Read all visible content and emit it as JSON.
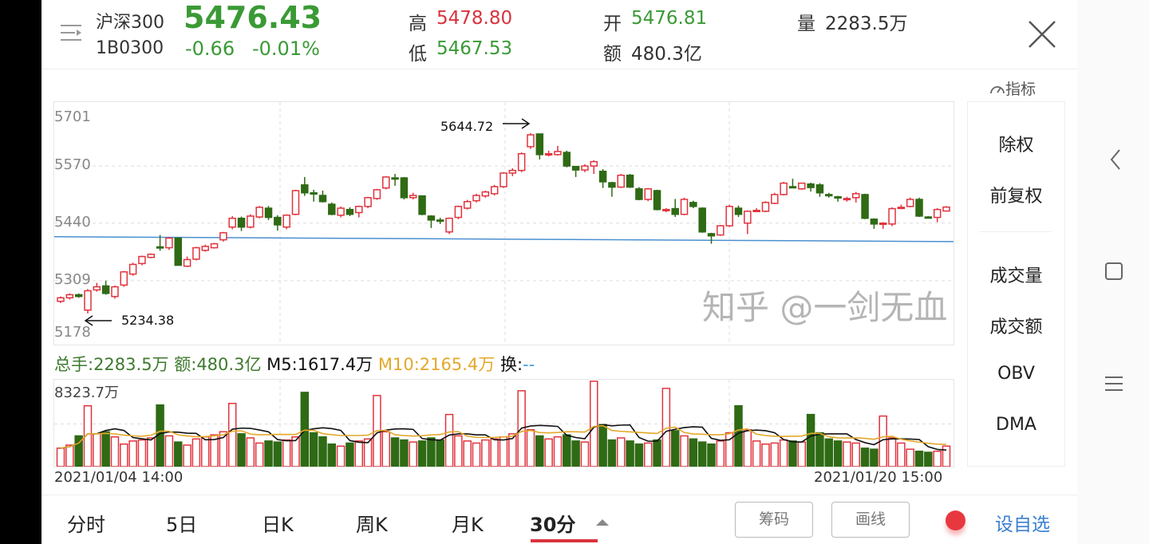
{
  "header": {
    "name": "沪深300",
    "code": "1B0300",
    "price": "5476.43",
    "change": "-0.66",
    "change_pct": "-0.01%",
    "high_label": "高",
    "high": "5478.80",
    "low_label": "低",
    "low": "5467.53",
    "open_label": "开",
    "open": "5476.81",
    "amount_label": "额",
    "amount": "480.3亿",
    "volume_label": "量",
    "volume": "2283.5万"
  },
  "indicator_label": "指标",
  "side_menu": [
    {
      "label": "除权",
      "active": false
    },
    {
      "label": "前复权",
      "active": true
    },
    {
      "label": "成交量",
      "active": true
    },
    {
      "label": "成交额",
      "active": false
    },
    {
      "label": "OBV",
      "active": false
    },
    {
      "label": "DMA",
      "active": false
    }
  ],
  "volume_legend": {
    "total": "总手:2283.5万",
    "amount": "额:480.3亿",
    "m5": "M5:1617.4万",
    "m10": "M10:2165.4万",
    "turnover_label": "换:",
    "turnover": "--"
  },
  "dates": {
    "start": "2021/01/04 14:00",
    "end": "2021/01/20 15:00"
  },
  "tabs": [
    {
      "label": "分时"
    },
    {
      "label": "5日"
    },
    {
      "label": "日K"
    },
    {
      "label": "周K"
    },
    {
      "label": "月K"
    },
    {
      "label": "30分",
      "active": true
    }
  ],
  "buttons": {
    "chips": "筹码",
    "draw": "画线",
    "add_watch": "设自选"
  },
  "watermark": "知乎 @一剑无血",
  "colors": {
    "up": "#e0343e",
    "down": "#2f6a15",
    "price_green": "#3a9a35",
    "accent_red": "#d9333d",
    "link_blue": "#3a7fd0",
    "ma5": "#111111",
    "ma10": "#e3a82a",
    "trendline": "#4a90d0"
  },
  "chart_data": {
    "type": "candlestick",
    "interval": "30分",
    "ylim": [
      5178,
      5701
    ],
    "yticks": [
      "5701",
      "5570",
      "5440",
      "5309",
      "5178"
    ],
    "annotations": {
      "max": "5644.72",
      "min": "5234.38"
    },
    "trendline": [
      5409,
      5398
    ],
    "ohlc": [
      [
        5262,
        5270,
        5273,
        5258
      ],
      [
        5270,
        5277,
        5280,
        5266
      ],
      [
        5277,
        5273,
        5280,
        5270
      ],
      [
        5242,
        5286,
        5290,
        5234.38
      ],
      [
        5288,
        5295,
        5304,
        5284
      ],
      [
        5297,
        5280,
        5309,
        5277
      ],
      [
        5273,
        5295,
        5298,
        5268
      ],
      [
        5299,
        5329,
        5331,
        5295
      ],
      [
        5324,
        5346,
        5350,
        5320
      ],
      [
        5348,
        5364,
        5366,
        5344
      ],
      [
        5362,
        5369,
        5371,
        5360
      ],
      [
        5386,
        5384,
        5413,
        5377
      ],
      [
        5384,
        5406,
        5408,
        5379
      ],
      [
        5406,
        5344,
        5408,
        5344
      ],
      [
        5342,
        5357,
        5364,
        5340
      ],
      [
        5358,
        5384,
        5386,
        5355
      ],
      [
        5378,
        5387,
        5391,
        5375
      ],
      [
        5384,
        5393,
        5395,
        5382
      ],
      [
        5402,
        5418,
        5420,
        5398
      ],
      [
        5431,
        5451,
        5456,
        5426
      ],
      [
        5451,
        5431,
        5455,
        5422
      ],
      [
        5431,
        5456,
        5460,
        5428
      ],
      [
        5454,
        5476,
        5479,
        5451
      ],
      [
        5474,
        5453,
        5479,
        5447
      ],
      [
        5453,
        5436,
        5458,
        5423
      ],
      [
        5431,
        5458,
        5460,
        5426
      ],
      [
        5460,
        5514,
        5516,
        5458
      ],
      [
        5527,
        5509,
        5545,
        5502
      ],
      [
        5509,
        5507,
        5516,
        5489
      ],
      [
        5503,
        5489,
        5514,
        5487
      ],
      [
        5483,
        5460,
        5487,
        5458
      ],
      [
        5458,
        5474,
        5478,
        5453
      ],
      [
        5471,
        5460,
        5476,
        5456
      ],
      [
        5464,
        5478,
        5480,
        5453
      ],
      [
        5478,
        5498,
        5500,
        5474
      ],
      [
        5496,
        5516,
        5518,
        5493
      ],
      [
        5520,
        5545,
        5547,
        5517
      ],
      [
        5543,
        5541,
        5552,
        5525
      ],
      [
        5543,
        5498,
        5545,
        5494
      ],
      [
        5498,
        5503,
        5509,
        5494
      ],
      [
        5502,
        5460,
        5502,
        5458
      ],
      [
        5456,
        5447,
        5458,
        5429
      ],
      [
        5447,
        5445,
        5452,
        5438
      ],
      [
        5420,
        5451,
        5453,
        5415
      ],
      [
        5453,
        5478,
        5480,
        5449
      ],
      [
        5474,
        5489,
        5493,
        5471
      ],
      [
        5491,
        5503,
        5507,
        5487
      ],
      [
        5502,
        5511,
        5514,
        5498
      ],
      [
        5507,
        5523,
        5527,
        5503
      ],
      [
        5523,
        5554,
        5556,
        5520
      ],
      [
        5554,
        5560,
        5565,
        5547
      ],
      [
        5560,
        5598,
        5601,
        5556
      ],
      [
        5614,
        5641,
        5644.72,
        5609
      ],
      [
        5643,
        5596,
        5644,
        5585
      ],
      [
        5596,
        5598,
        5605,
        5592
      ],
      [
        5596,
        5603,
        5616,
        5594
      ],
      [
        5601,
        5570,
        5605,
        5567
      ],
      [
        5569,
        5561,
        5570,
        5545
      ],
      [
        5561,
        5570,
        5574,
        5556
      ],
      [
        5570,
        5580,
        5583,
        5552
      ],
      [
        5558,
        5534,
        5563,
        5520
      ],
      [
        5532,
        5522,
        5534,
        5500
      ],
      [
        5522,
        5549,
        5552,
        5520
      ],
      [
        5549,
        5522,
        5552,
        5520
      ],
      [
        5518,
        5494,
        5522,
        5492
      ],
      [
        5494,
        5518,
        5520,
        5490
      ],
      [
        5514,
        5471,
        5516,
        5469
      ],
      [
        5469,
        5471,
        5474,
        5465
      ],
      [
        5473,
        5460,
        5495,
        5454
      ],
      [
        5460,
        5494,
        5498,
        5458
      ],
      [
        5487,
        5478,
        5491,
        5474
      ],
      [
        5474,
        5420,
        5476,
        5418
      ],
      [
        5416,
        5411,
        5418,
        5393
      ],
      [
        5413,
        5434,
        5436,
        5411
      ],
      [
        5434,
        5478,
        5482,
        5431
      ],
      [
        5474,
        5460,
        5480,
        5454
      ],
      [
        5440,
        5467,
        5469,
        5415
      ],
      [
        5467,
        5469,
        5474,
        5465
      ],
      [
        5467,
        5487,
        5490,
        5465
      ],
      [
        5485,
        5505,
        5509,
        5483
      ],
      [
        5505,
        5531,
        5534,
        5503
      ],
      [
        5523,
        5521,
        5541,
        5520
      ],
      [
        5518,
        5531,
        5532,
        5516
      ],
      [
        5529,
        5521,
        5532,
        5512
      ],
      [
        5527,
        5509,
        5531,
        5500
      ],
      [
        5505,
        5503,
        5509,
        5498
      ],
      [
        5500,
        5498,
        5502,
        5489
      ],
      [
        5494,
        5496,
        5500,
        5489
      ],
      [
        5498,
        5507,
        5511,
        5487
      ],
      [
        5505,
        5451,
        5507,
        5449
      ],
      [
        5449,
        5438,
        5451,
        5427
      ],
      [
        5438,
        5440,
        5442,
        5427
      ],
      [
        5438,
        5473,
        5476,
        5433
      ],
      [
        5474,
        5476,
        5482,
        5472
      ],
      [
        5478,
        5494,
        5498,
        5476
      ],
      [
        5494,
        5456,
        5498,
        5454
      ],
      [
        5454,
        5453,
        5456,
        5453
      ],
      [
        5453,
        5471,
        5474,
        5442
      ],
      [
        5467.53,
        5476.43,
        5478.8,
        5467.53
      ]
    ],
    "volume_max": "8323.7万",
    "volume": [
      1800,
      2100,
      3000,
      5934,
      3200,
      3400,
      2900,
      2200,
      2500,
      2600,
      2800,
      6011,
      3000,
      2400,
      2100,
      2700,
      2900,
      3100,
      3400,
      6165,
      3200,
      2800,
      2300,
      2500,
      2400,
      2600,
      2900,
      7244,
      3300,
      2900,
      2200,
      2000,
      2300,
      2500,
      2700,
      6936,
      3400,
      2800,
      2600,
      2400,
      2500,
      2800,
      2600,
      5086,
      3000,
      2500,
      2300,
      2600,
      2700,
      2900,
      3200,
      7398,
      3600,
      3000,
      2700,
      2900,
      3100,
      2500,
      2400,
      8323.7,
      4100,
      2600,
      2800,
      2500,
      2200,
      2300,
      2600,
      7630,
      3500,
      3000,
      2700,
      2400,
      2200,
      2500,
      3300,
      5934,
      3600,
      2500,
      2200,
      2300,
      2600,
      2500,
      2400,
      5086,
      3300,
      2700,
      2500,
      2400,
      2300,
      1800,
      1700,
      4932,
      2800,
      2300,
      1700,
      1500,
      1400,
      1500,
      2000
    ]
  }
}
